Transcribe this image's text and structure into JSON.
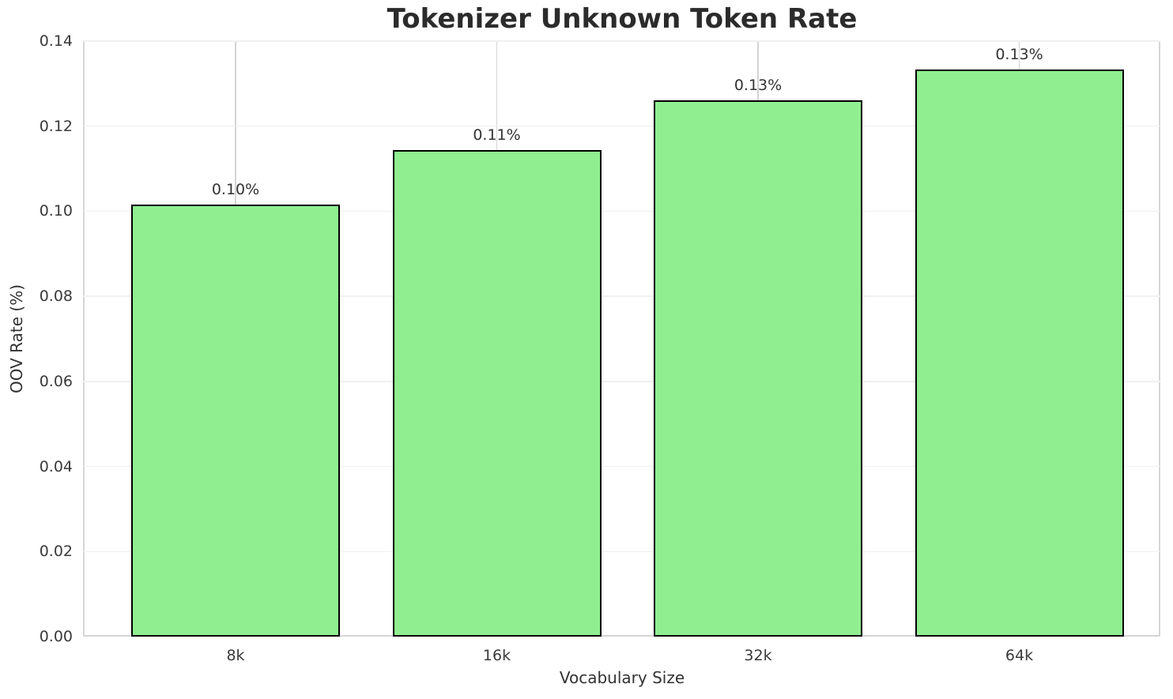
{
  "chart_data": {
    "type": "bar",
    "title": "Tokenizer Unknown Token Rate",
    "xlabel": "Vocabulary Size",
    "ylabel": "OOV Rate (%)",
    "categories": [
      "8k",
      "16k",
      "32k",
      "64k"
    ],
    "values": [
      0.1015,
      0.1143,
      0.126,
      0.1334
    ],
    "bar_labels": [
      "0.10%",
      "0.11%",
      "0.13%",
      "0.13%"
    ],
    "ylim": [
      0,
      0.14
    ],
    "yticks": [
      0.0,
      0.02,
      0.04,
      0.06,
      0.08,
      0.1,
      0.12,
      0.14
    ],
    "ytick_labels": [
      "0.00",
      "0.02",
      "0.04",
      "0.06",
      "0.08",
      "0.10",
      "0.12",
      "0.14"
    ],
    "grid": true,
    "legend": false,
    "colors": {
      "bar_fill": "#90EE90",
      "bar_edge": "#000000",
      "grid_horizontal": "#f0f0f0",
      "grid_vertical": "#d4d4d4",
      "spine": "#d6d6d6",
      "title_text": "#2b2b2b",
      "tick_text": "#3a3a3a"
    }
  }
}
